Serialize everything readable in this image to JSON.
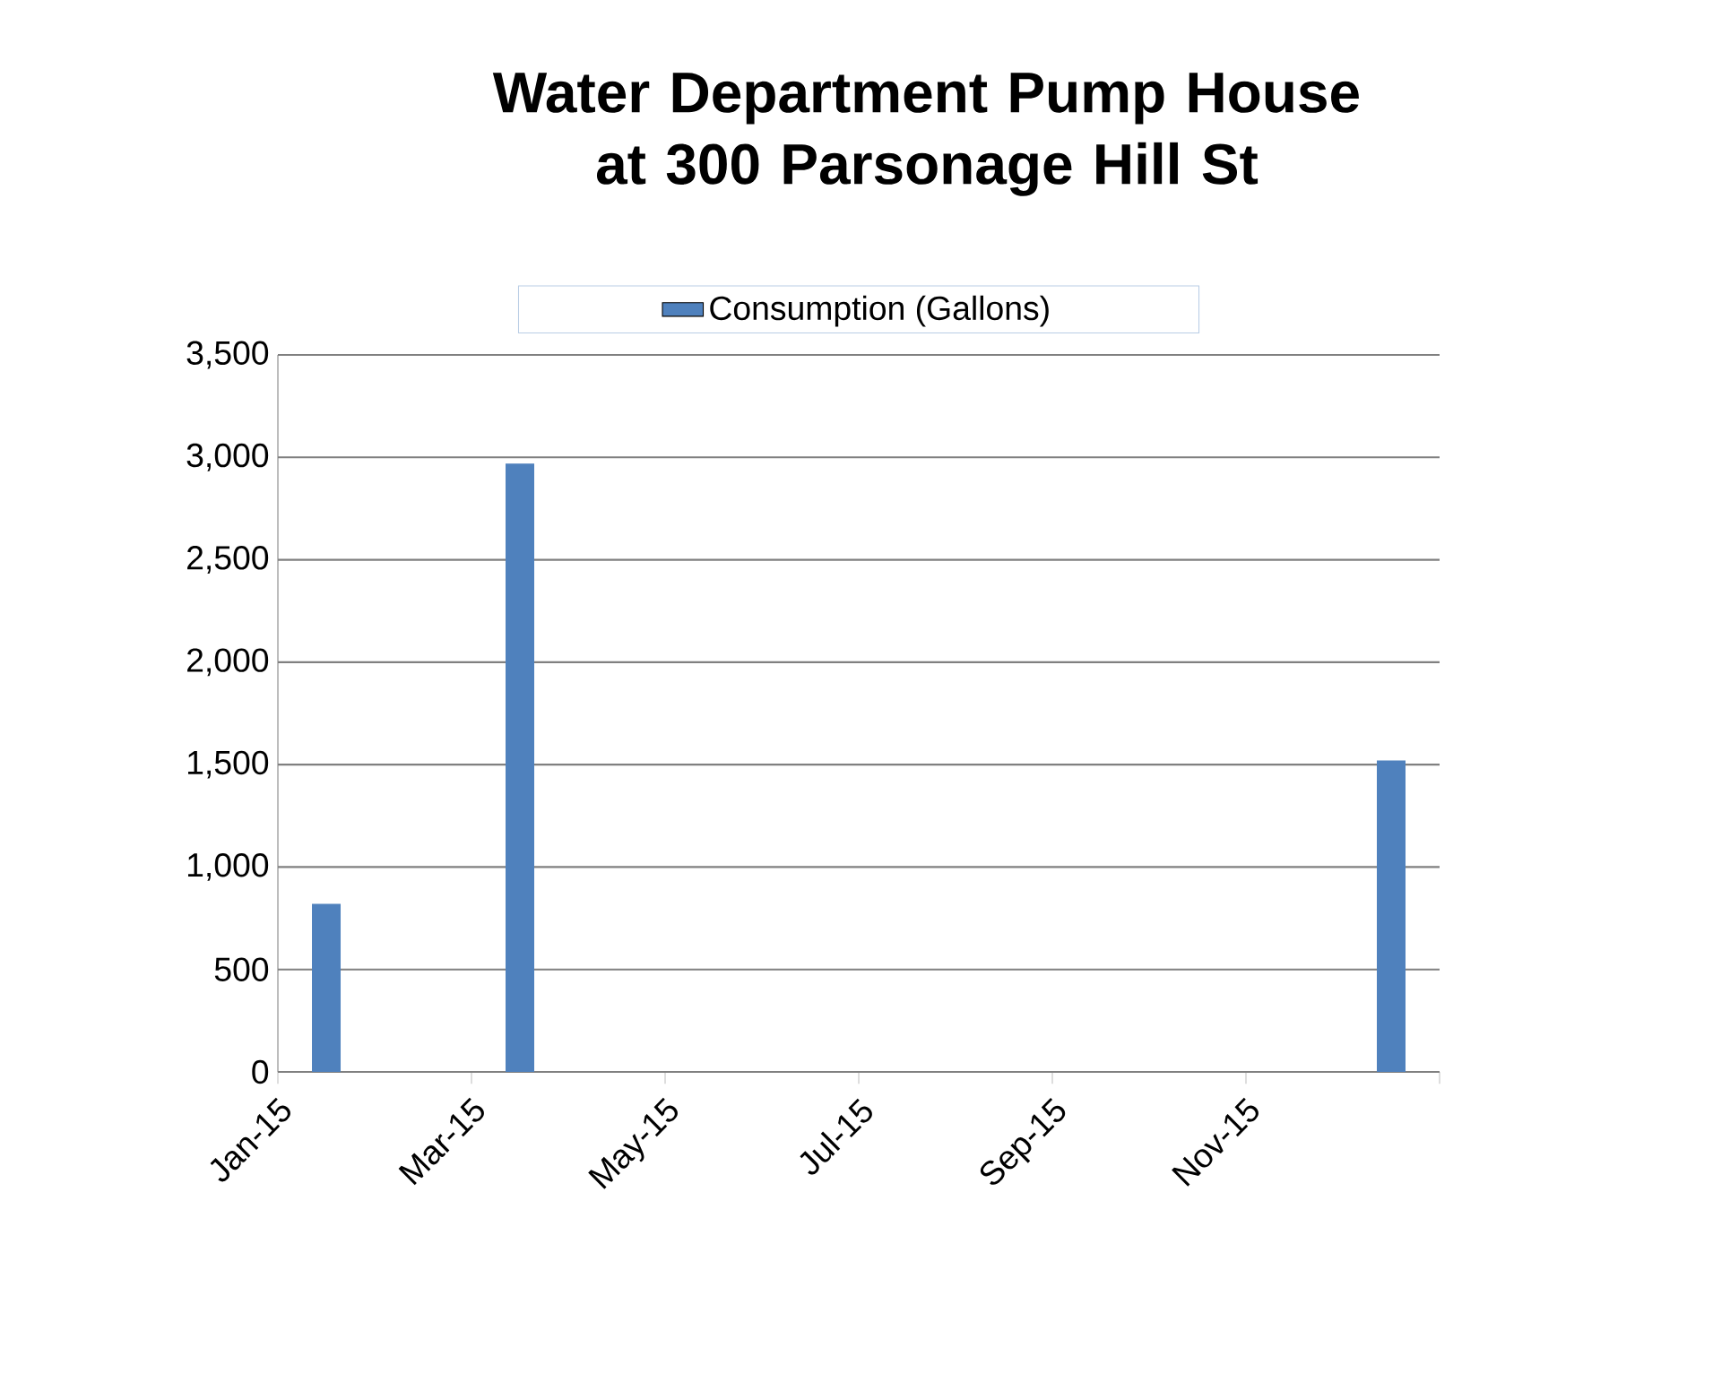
{
  "chart_data": {
    "type": "bar",
    "title": "Water Department Pump House at 300 Parsonage Hill St",
    "categories": [
      "Jan-15",
      null,
      "Mar-15",
      null,
      "May-15",
      null,
      "Jul-15",
      null,
      "Sep-15",
      null,
      "Nov-15",
      null
    ],
    "series": [
      {
        "name": "Consumption (Gallons)",
        "color": "#4f81bd",
        "values": [
          820,
          null,
          2970,
          null,
          null,
          null,
          null,
          null,
          null,
          null,
          null,
          1520
        ]
      }
    ],
    "ylim": [
      0,
      3500
    ],
    "yticks": [
      {
        "value": 0,
        "label": "0"
      },
      {
        "value": 500,
        "label": "500"
      },
      {
        "value": 1000,
        "label": "1,000"
      },
      {
        "value": 1500,
        "label": "1,500"
      },
      {
        "value": 2000,
        "label": "2,000"
      },
      {
        "value": 2500,
        "label": "2,500"
      },
      {
        "value": 3000,
        "label": "3,000"
      },
      {
        "value": 3500,
        "label": "3,500"
      }
    ],
    "grid": "y",
    "legend": "top"
  }
}
